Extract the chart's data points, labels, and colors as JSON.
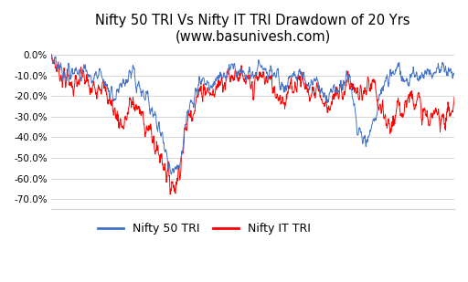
{
  "title_line1": "Nifty 50 TRI Vs Nifty IT TRI Drawdown of 20 Yrs",
  "title_line2": "(www.basunivesh.com)",
  "ylim": [
    -0.75,
    0.04
  ],
  "yticks": [
    0.0,
    -0.1,
    -0.2,
    -0.3,
    -0.4,
    -0.5,
    -0.6,
    -0.7
  ],
  "legend_labels": [
    "Nifty 50 TRI",
    "Nifty IT TRI"
  ],
  "nifty50_color": "#4472C4",
  "niftyIT_color": "#FF0000",
  "background_color": "#FFFFFF",
  "grid_color": "#D0D0D0",
  "title_fontsize": 10.5,
  "legend_fontsize": 9,
  "n_points": 1200
}
